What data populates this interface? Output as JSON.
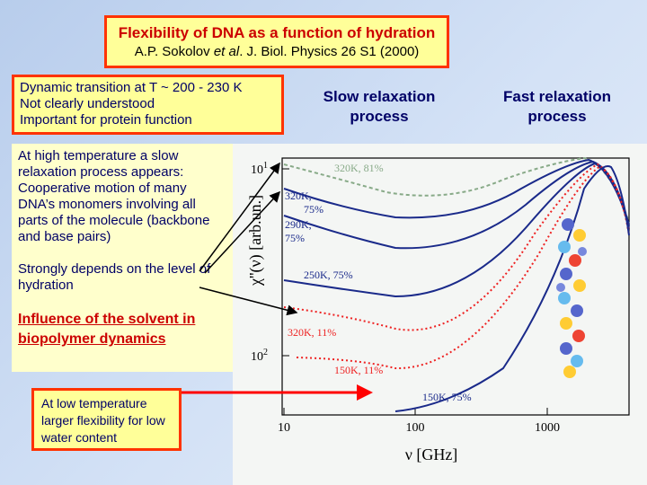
{
  "header": {
    "title": "Flexibility of DNA as a function of hydration",
    "citation": [
      "A.P. Sokolov",
      "et al",
      ". J. Biol. Physics 26 S1 (2000)"
    ]
  },
  "boxes": {
    "transition": [
      "Dynamic transition at  T ~ 200 - 230 K",
      "Not clearly understood",
      "Important for protein function"
    ],
    "slow": [
      "At high temperature a slow relaxation process appears: Cooperative motion of many DNA’s monomers involving all parts of the molecule (backbone and base pairs)",
      "Strongly depends on the level of hydration",
      "Influence of the solvent in biopolymer dynamics"
    ],
    "low": "At low temperature larger flexibility for low water content"
  },
  "headings": [
    "Slow relaxation process",
    "Fast relaxation process"
  ],
  "plot": {
    "xticks": [
      "10",
      "100",
      "1000"
    ],
    "yticks": [
      {
        "base": "10",
        "exp": "1"
      },
      {
        "base": "10",
        "exp": "2"
      }
    ],
    "xlabel": "ν [GHz]",
    "ylabel": "χ''(ν) [arb.un.]",
    "curve_labels": [
      {
        "lines": [
          "320K, 81%"
        ]
      },
      {
        "lines": [
          "320K,",
          "75%"
        ]
      },
      {
        "lines": [
          "290K,",
          "75%"
        ]
      },
      {
        "lines": [
          "250K, 75%"
        ]
      },
      {
        "lines": [
          "320K, 11%"
        ]
      },
      {
        "lines": [
          "150K, 11%"
        ]
      },
      {
        "lines": [
          "150K, 75%"
        ]
      }
    ]
  }
}
